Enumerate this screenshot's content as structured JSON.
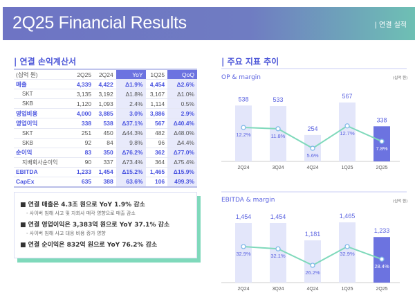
{
  "header": {
    "title": "2Q25 Financial Results",
    "subtitle": "| 연결 실적"
  },
  "left": {
    "section_title": "| 연결 손익계산서",
    "table": {
      "headers": [
        "(십억 원)",
        "2Q25",
        "2Q24",
        "YoY",
        "1Q25",
        "QoQ"
      ],
      "rows": [
        {
          "type": "main",
          "cells": [
            "매출",
            "4,339",
            "4,422",
            "Δ1.9%",
            "4,454",
            "Δ2.6%"
          ]
        },
        {
          "type": "sub",
          "cells": [
            "SKT",
            "3,135",
            "3,192",
            "Δ1.8%",
            "3,167",
            "Δ1.0%"
          ]
        },
        {
          "type": "sub",
          "cells": [
            "SKB",
            "1,120",
            "1,093",
            "2.4%",
            "1,114",
            "0.5%"
          ]
        },
        {
          "type": "main",
          "cells": [
            "영업비용",
            "4,000",
            "3,885",
            "3.0%",
            "3,886",
            "2.9%"
          ]
        },
        {
          "type": "main",
          "cells": [
            "영업이익",
            "338",
            "538",
            "Δ37.1%",
            "567",
            "Δ40.4%"
          ]
        },
        {
          "type": "sub",
          "cells": [
            "SKT",
            "251",
            "450",
            "Δ44.3%",
            "482",
            "Δ48.0%"
          ]
        },
        {
          "type": "sub",
          "cells": [
            "SKB",
            "92",
            "84",
            "9.8%",
            "96",
            "Δ4.4%"
          ]
        },
        {
          "type": "main",
          "cells": [
            "순이익",
            "83",
            "350",
            "Δ76.2%",
            "362",
            "Δ77.0%"
          ]
        },
        {
          "type": "sub",
          "cells": [
            "지배회사순이익",
            "90",
            "337",
            "Δ73.4%",
            "364",
            "Δ75.4%"
          ]
        },
        {
          "type": "main",
          "cells": [
            "EBITDA",
            "1,233",
            "1,454",
            "Δ15.2%",
            "1,465",
            "Δ15.9%"
          ]
        },
        {
          "type": "main",
          "cells": [
            "CapEx",
            "635",
            "388",
            "63.6%",
            "106",
            "499.3%"
          ]
        }
      ]
    },
    "summary": [
      {
        "bullet": "■ 연결 매출은 4.3조 원으로 YoY 1.9% 감소",
        "detail": "- 사이버 침해 사고 및 자회사 매각 영향으로 매출 감소"
      },
      {
        "bullet": "■ 연결 영업이익은 3,383억 원으로 YoY 37.1% 감소",
        "detail": "- 사이버 침해 사고 대응 비용 증가 영향"
      },
      {
        "bullet": "■ 연결 순이익은 832억 원으로 YoY 76.2% 감소",
        "detail": null
      }
    ]
  },
  "right": {
    "section_title": "| 주요 지표 추이"
  },
  "chart_data": [
    {
      "type": "bar",
      "title": "OP & margin",
      "unit": "(십억 원)",
      "categories": [
        "2Q24",
        "3Q24",
        "4Q24",
        "1Q25",
        "2Q25"
      ],
      "series": [
        {
          "values": [
            538,
            533,
            254,
            567,
            338
          ],
          "labels": [
            "538",
            "533",
            "254",
            "567",
            "338"
          ]
        },
        {
          "type": "line",
          "values": [
            12.2,
            11.8,
            5.6,
            12.7,
            7.8
          ],
          "labels": [
            "12.2%",
            "11.8%",
            "5.6%",
            "12.7%",
            "7.8%"
          ]
        }
      ],
      "colors": {
        "bar": "#e3e6fa",
        "highlight": "#6c73e0",
        "line": "#7fd9bb"
      }
    },
    {
      "type": "bar",
      "title": "EBITDA & margin",
      "unit": "(십억 원)",
      "categories": [
        "2Q24",
        "3Q24",
        "4Q24",
        "1Q25",
        "2Q25"
      ],
      "series": [
        {
          "values": [
            1454,
            1454,
            1181,
            1465,
            1233
          ],
          "labels": [
            "1,454",
            "1,454",
            "1,181",
            "1,465",
            "1,233"
          ]
        },
        {
          "type": "line",
          "values": [
            32.9,
            32.1,
            26.2,
            32.9,
            28.4
          ],
          "labels": [
            "32.9%",
            "32.1%",
            "26.2%",
            "32.9%",
            "28.4%"
          ]
        }
      ],
      "colors": {
        "bar": "#e3e6fa",
        "highlight": "#6c73e0",
        "line": "#7fd9bb"
      }
    }
  ]
}
